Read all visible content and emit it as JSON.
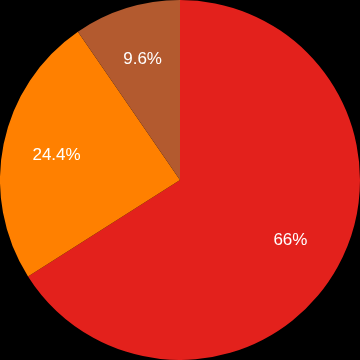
{
  "chart_data": {
    "type": "pie",
    "values": [
      66,
      24.4,
      9.6
    ],
    "value_labels": [
      "66%",
      "24.4%",
      "9.6%"
    ],
    "colors": [
      "#e3211c",
      "#ff8000",
      "#b35a2f"
    ],
    "data_labels": true
  }
}
